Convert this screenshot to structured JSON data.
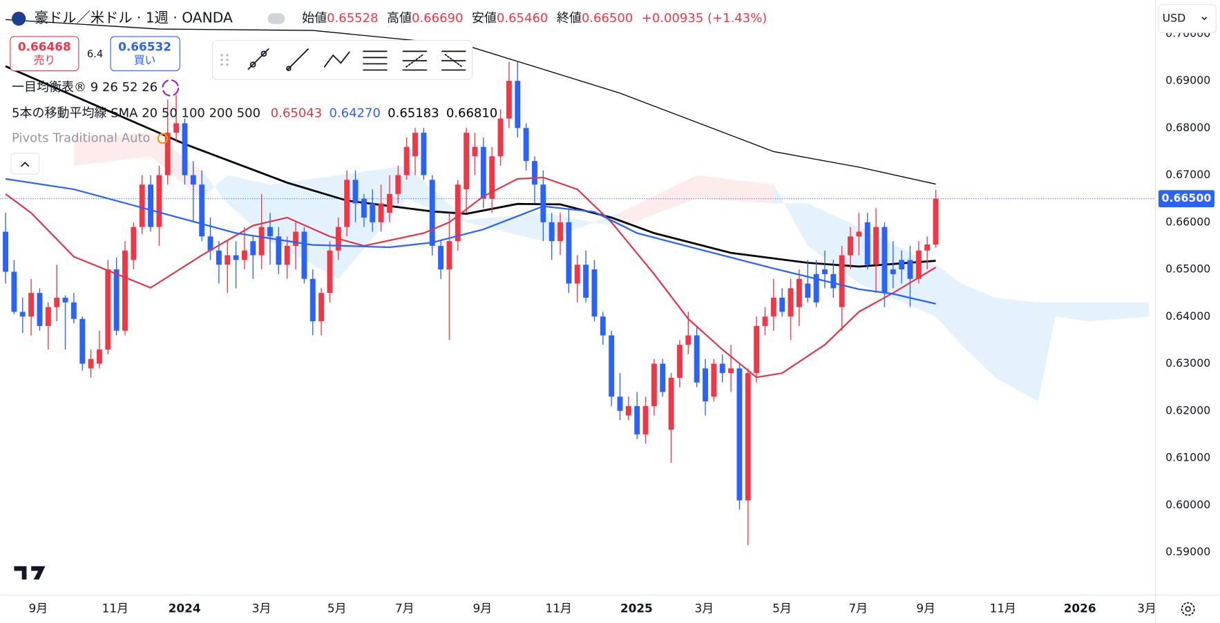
{
  "header": {
    "symbol": "豪ドル／米ドル · 1週 · OANDA",
    "ohlc": [
      {
        "label": "始値",
        "value": "0.65528"
      },
      {
        "label": "高値",
        "value": "0.66690"
      },
      {
        "label": "安値",
        "value": "0.65460"
      },
      {
        "label": "終値",
        "value": "0.66500"
      }
    ],
    "change": "+0.00935 (+1.43%)"
  },
  "trade": {
    "sell_price": "0.66468",
    "sell_label": "売り",
    "spread": "6.4",
    "buy_price": "0.66532",
    "buy_label": "買い"
  },
  "indicators": {
    "ichimoku_label": "一目均衡表®",
    "ichimoku_params": [
      9,
      26,
      52,
      26
    ],
    "sma_label": "5本の移動平均線 SMA",
    "sma_periods": [
      20,
      50,
      100,
      200,
      500
    ],
    "pivots_label": "Pivots Traditional Auto"
  },
  "currency": "USD",
  "chart_data": {
    "type": "candlestick",
    "up_color": "#f23645",
    "down_color": "#2962ff",
    "open": [
      0.658,
      0.6495,
      0.641,
      0.64,
      0.645,
      0.638,
      0.642,
      0.644,
      0.643,
      0.6395,
      0.629,
      0.63,
      0.633,
      0.65,
      0.637,
      0.652,
      0.659,
      0.668,
      0.659,
      0.67,
      0.679,
      0.681,
      0.67,
      0.668,
      0.657,
      0.654,
      0.651,
      0.653,
      0.652,
      0.656,
      0.653,
      0.659,
      0.657,
      0.651,
      0.655,
      0.658,
      0.648,
      0.639,
      0.645,
      0.654,
      0.659,
      0.669,
      0.665,
      0.664,
      0.66,
      0.662,
      0.666,
      0.67,
      0.674,
      0.679,
      0.669,
      0.655,
      0.65,
      0.656,
      0.667,
      0.674,
      0.676,
      0.665,
      0.674,
      0.682,
      0.69,
      0.68,
      0.673,
      0.668,
      0.66,
      0.656,
      0.66,
      0.647,
      0.651,
      0.65,
      0.64,
      0.636,
      0.623,
      0.619,
      0.621,
      0.615,
      0.621,
      0.63,
      0.616,
      0.627,
      0.634,
      0.636,
      0.629,
      0.623,
      0.63,
      0.628,
      0.629,
      0.601,
      0.628,
      0.638,
      0.64,
      0.644,
      0.64,
      0.642,
      0.647,
      0.649,
      0.65,
      0.649,
      0.642,
      0.653,
      0.657,
      0.66,
      0.651,
      0.659,
      0.65,
      0.652,
      0.652,
      0.648,
      0.654,
      0.65528
    ],
    "high": [
      0.662,
      0.652,
      0.644,
      0.648,
      0.646,
      0.643,
      0.651,
      0.6445,
      0.645,
      0.64,
      0.633,
      0.637,
      0.652,
      0.6525,
      0.656,
      0.66,
      0.67,
      0.67,
      0.672,
      0.686,
      0.687,
      0.682,
      0.673,
      0.671,
      0.661,
      0.656,
      0.656,
      0.656,
      0.659,
      0.657,
      0.666,
      0.662,
      0.659,
      0.657,
      0.66,
      0.659,
      0.65,
      0.646,
      0.656,
      0.661,
      0.671,
      0.671,
      0.666,
      0.667,
      0.668,
      0.67,
      0.672,
      0.678,
      0.68,
      0.68,
      0.67,
      0.656,
      0.662,
      0.669,
      0.68,
      0.679,
      0.678,
      0.676,
      0.684,
      0.694,
      0.694,
      0.681,
      0.674,
      0.671,
      0.662,
      0.662,
      0.663,
      0.653,
      0.654,
      0.652,
      0.641,
      0.637,
      0.628,
      0.623,
      0.624,
      0.623,
      0.631,
      0.631,
      0.628,
      0.635,
      0.641,
      0.638,
      0.631,
      0.631,
      0.632,
      0.634,
      0.63,
      0.629,
      0.64,
      0.642,
      0.648,
      0.646,
      0.648,
      0.65,
      0.652,
      0.652,
      0.654,
      0.652,
      0.655,
      0.659,
      0.662,
      0.662,
      0.663,
      0.66,
      0.656,
      0.654,
      0.655,
      0.656,
      0.657,
      0.6669
    ],
    "low": [
      0.647,
      0.6405,
      0.6365,
      0.636,
      0.637,
      0.633,
      0.639,
      0.633,
      0.6385,
      0.6285,
      0.627,
      0.629,
      0.632,
      0.636,
      0.636,
      0.65,
      0.6575,
      0.658,
      0.655,
      0.668,
      0.677,
      0.668,
      0.66,
      0.656,
      0.652,
      0.647,
      0.645,
      0.646,
      0.65,
      0.648,
      0.65,
      0.651,
      0.649,
      0.648,
      0.65,
      0.647,
      0.636,
      0.636,
      0.643,
      0.652,
      0.657,
      0.66,
      0.659,
      0.658,
      0.658,
      0.66,
      0.664,
      0.669,
      0.67,
      0.669,
      0.653,
      0.648,
      0.635,
      0.654,
      0.662,
      0.67,
      0.663,
      0.662,
      0.672,
      0.68,
      0.678,
      0.671,
      0.664,
      0.656,
      0.652,
      0.653,
      0.645,
      0.643,
      0.643,
      0.639,
      0.634,
      0.621,
      0.618,
      0.618,
      0.614,
      0.613,
      0.619,
      0.623,
      0.609,
      0.625,
      0.632,
      0.625,
      0.619,
      0.622,
      0.626,
      0.624,
      0.599,
      0.5915,
      0.626,
      0.636,
      0.637,
      0.64,
      0.635,
      0.638,
      0.643,
      0.642,
      0.646,
      0.644,
      0.637,
      0.65,
      0.653,
      0.65,
      0.645,
      0.642,
      0.646,
      0.647,
      0.642,
      0.647,
      0.65,
      0.6546
    ],
    "close": [
      0.6495,
      0.641,
      0.64,
      0.645,
      0.638,
      0.642,
      0.644,
      0.643,
      0.6395,
      0.63,
      0.631,
      0.633,
      0.65,
      0.637,
      0.654,
      0.659,
      0.668,
      0.659,
      0.67,
      0.679,
      0.681,
      0.67,
      0.668,
      0.657,
      0.654,
      0.651,
      0.653,
      0.652,
      0.654,
      0.653,
      0.659,
      0.657,
      0.651,
      0.655,
      0.658,
      0.648,
      0.639,
      0.645,
      0.654,
      0.659,
      0.669,
      0.664,
      0.661,
      0.66,
      0.664,
      0.666,
      0.67,
      0.676,
      0.679,
      0.67,
      0.655,
      0.65,
      0.656,
      0.668,
      0.679,
      0.676,
      0.665,
      0.674,
      0.682,
      0.69,
      0.68,
      0.673,
      0.668,
      0.66,
      0.656,
      0.66,
      0.647,
      0.651,
      0.644,
      0.64,
      0.636,
      0.623,
      0.62,
      0.621,
      0.615,
      0.621,
      0.63,
      0.624,
      0.627,
      0.634,
      0.636,
      0.626,
      0.622,
      0.63,
      0.628,
      0.629,
      0.601,
      0.628,
      0.638,
      0.64,
      0.644,
      0.641,
      0.646,
      0.648,
      0.644,
      0.643,
      0.649,
      0.646,
      0.653,
      0.657,
      0.658,
      0.651,
      0.659,
      0.645,
      0.649,
      0.65,
      0.648,
      0.654,
      0.6553,
      0.665
    ],
    "xlim": [
      -0.64,
      134.73
    ],
    "ylim": [
      0.58092,
      0.70716
    ],
    "xticks": [
      {
        "value": 3.83,
        "label": "9月"
      },
      {
        "value": 12.85,
        "label": "11月"
      },
      {
        "value": 20.97,
        "label": "2024"
      },
      {
        "value": 29.99,
        "label": "3月"
      },
      {
        "value": 38.83,
        "label": "5月"
      },
      {
        "value": 46.76,
        "label": "7月"
      },
      {
        "value": 55.88,
        "label": "9月"
      },
      {
        "value": 64.81,
        "label": "11月"
      },
      {
        "value": 73.93,
        "label": "2025"
      },
      {
        "value": 81.86,
        "label": "3月"
      },
      {
        "value": 90.98,
        "label": "5月"
      },
      {
        "value": 99.91,
        "label": "7月"
      },
      {
        "value": 107.84,
        "label": "9月"
      },
      {
        "value": 116.87,
        "label": "11月"
      },
      {
        "value": 125.89,
        "label": "2026"
      },
      {
        "value": 133.73,
        "label": "3月"
      }
    ],
    "yticks": [
      {
        "value": 0.59,
        "label": "0.59000"
      },
      {
        "value": 0.6,
        "label": "0.60000"
      },
      {
        "value": 0.61,
        "label": "0.61000"
      },
      {
        "value": 0.62,
        "label": "0.62000"
      },
      {
        "value": 0.63,
        "label": "0.63000"
      },
      {
        "value": 0.64,
        "label": "0.64000"
      },
      {
        "value": 0.65,
        "label": "0.65000"
      },
      {
        "value": 0.66,
        "label": "0.66000"
      },
      {
        "value": 0.67,
        "label": "0.67000"
      },
      {
        "value": 0.68,
        "label": "0.68000"
      },
      {
        "value": 0.69,
        "label": "0.69000"
      },
      {
        "value": 0.7,
        "label": "0.70000"
      }
    ],
    "last_price": {
      "value": 0.665,
      "label": "0.66500",
      "color": "#2962ff"
    },
    "sma": [
      {
        "color": "#e0374a",
        "width": 2,
        "last_label": "0.65043",
        "x": [
          0,
          3,
          8,
          17,
          23,
          29,
          33,
          38,
          42,
          49,
          52,
          56,
          60,
          63,
          67,
          71,
          76,
          80,
          84,
          88,
          91,
          96,
          100,
          104,
          109
        ],
        "values": [
          0.666,
          0.662,
          0.6527,
          0.6461,
          0.653,
          0.6593,
          0.661,
          0.657,
          0.655,
          0.6577,
          0.66,
          0.6655,
          0.6692,
          0.6695,
          0.667,
          0.66,
          0.649,
          0.6395,
          0.633,
          0.6271,
          0.628,
          0.634,
          0.641,
          0.645,
          0.65043
        ]
      },
      {
        "color": "#2962ff",
        "width": 2,
        "last_label": "0.64270",
        "x": [
          0,
          8,
          17,
          27,
          36,
          45,
          50,
          56,
          63,
          69,
          74,
          81,
          90,
          100,
          104,
          109
        ],
        "values": [
          0.6692,
          0.667,
          0.6626,
          0.6577,
          0.6552,
          0.6547,
          0.6557,
          0.6585,
          0.6634,
          0.6622,
          0.6577,
          0.6544,
          0.6502,
          0.6458,
          0.6448,
          0.6427
        ]
      },
      {
        "color": "#000000",
        "width": 2.5,
        "last_label": "0.65183",
        "x": [
          0,
          21,
          33,
          40,
          50,
          54,
          60,
          65,
          71,
          76,
          85,
          94,
          100,
          109
        ],
        "values": [
          0.6931,
          0.6766,
          0.6684,
          0.6646,
          0.6623,
          0.6618,
          0.6639,
          0.6638,
          0.661,
          0.6577,
          0.6535,
          0.6514,
          0.6506,
          0.65183
        ]
      },
      {
        "color": "#000000",
        "width": 1.2,
        "last_label": "0.66810",
        "x": [
          0,
          18,
          36,
          54,
          72,
          90,
          100,
          109
        ],
        "values": [
          0.703,
          0.701,
          0.7007,
          0.6975,
          0.6874,
          0.675,
          0.6717,
          0.6681
        ]
      }
    ],
    "ichimoku": {
      "up_color": "rgba(33,150,243,0.12)",
      "down_color": "rgba(242,54,69,0.10)",
      "x": [
        8,
        17,
        23,
        26,
        31,
        39,
        47,
        54,
        63,
        72,
        81,
        90,
        94,
        100,
        109,
        112,
        116,
        121,
        123,
        127,
        134
      ],
      "span_a": [
        0.672,
        0.674,
        0.665,
        0.67,
        0.668,
        0.67,
        0.672,
        0.6605,
        0.662,
        0.659,
        0.665,
        0.664,
        0.664,
        0.659,
        0.651,
        0.647,
        0.644,
        0.643,
        0.643,
        0.643,
        0.643
      ],
      "span_b": [
        0.678,
        0.679,
        0.671,
        0.664,
        0.656,
        0.648,
        0.665,
        0.66,
        0.656,
        0.662,
        0.67,
        0.668,
        0.655,
        0.647,
        0.64,
        0.634,
        0.627,
        0.622,
        0.64,
        0.639,
        0.64
      ]
    }
  }
}
